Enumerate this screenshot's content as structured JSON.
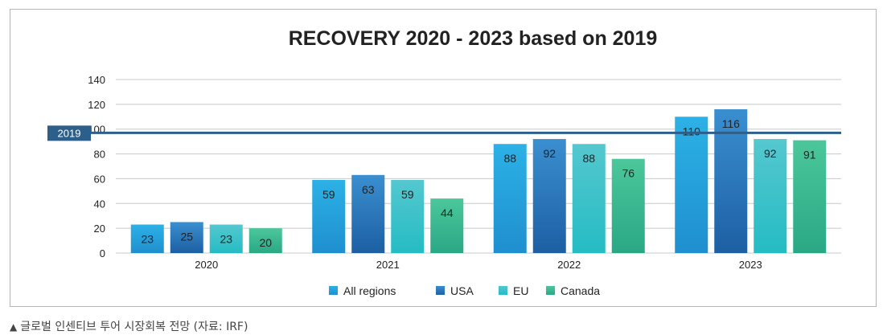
{
  "chart_data": {
    "type": "bar",
    "title": "RECOVERY 2020 - 2023 based on 2019",
    "categories": [
      "2020",
      "2021",
      "2022",
      "2023"
    ],
    "series": [
      {
        "name": "All regions",
        "values": [
          23,
          59,
          88,
          110
        ]
      },
      {
        "name": "USA",
        "values": [
          25,
          63,
          92,
          116
        ]
      },
      {
        "name": "EU",
        "values": [
          23,
          59,
          88,
          92
        ]
      },
      {
        "name": "Canada",
        "values": [
          20,
          44,
          76,
          91
        ]
      }
    ],
    "yticks": [
      "0",
      "20",
      "40",
      "60",
      "80",
      "100",
      "120",
      "140"
    ],
    "ylim": [
      0,
      140
    ],
    "reference_line": {
      "label": "2019",
      "value": 97
    },
    "grid": true,
    "legend_position": "bottom",
    "colors": {
      "All regions": [
        "#2cb1e6",
        "#1f8fcf"
      ],
      "USA": [
        "#3a8fd0",
        "#1d5fa3"
      ],
      "EU": [
        "#55c7cf",
        "#25bcc4"
      ],
      "Canada": [
        "#4cc79b",
        "#2aa885"
      ],
      "reference": "#2d5f8b"
    }
  },
  "caption": {
    "marker": "▲",
    "text": "글로벌 인센티브 투어 시장회복 전망 (자료: IRF)"
  }
}
